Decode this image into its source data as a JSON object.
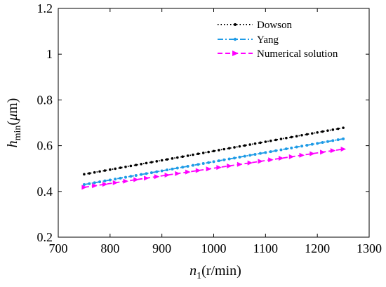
{
  "chart_data": {
    "type": "line",
    "xlabel": {
      "main": "n",
      "sub": "1",
      "unit": "(r/min)"
    },
    "ylabel": {
      "main": "h",
      "sub": "min",
      "unit_open": "(",
      "unit_mu": "μ",
      "unit_m": "m",
      "unit_close": ")"
    },
    "xlim": [
      700,
      1300
    ],
    "ylim": [
      0.2,
      1.2
    ],
    "xticks": [
      700,
      800,
      900,
      1000,
      1100,
      1200,
      1300
    ],
    "yticks": [
      0.2,
      0.4,
      0.6,
      0.8,
      1.0,
      1.2
    ],
    "xtick_labels": [
      "700",
      "800",
      "900",
      "1000",
      "1100",
      "1200",
      "1300"
    ],
    "ytick_labels": [
      "0.2",
      "0.4",
      "0.6",
      "0.8",
      "1",
      "1.2"
    ],
    "grid": false,
    "legend_position": "top-right",
    "series": [
      {
        "name": "Dowson",
        "color": "#000000",
        "marker": "dot",
        "line": "dotted",
        "x_start": 750,
        "x_end": 1250,
        "y_start": 0.475,
        "y_end": 0.678
      },
      {
        "name": "Yang",
        "color": "#1e9be6",
        "marker": "dot",
        "line": "dashdot",
        "x_start": 750,
        "x_end": 1250,
        "y_start": 0.43,
        "y_end": 0.63
      },
      {
        "name": "Numerical solution",
        "color": "#ff00ff",
        "marker": "triangle-right",
        "line": "dashed",
        "x_start": 750,
        "x_end": 1250,
        "y_start": 0.418,
        "y_end": 0.585
      }
    ]
  }
}
